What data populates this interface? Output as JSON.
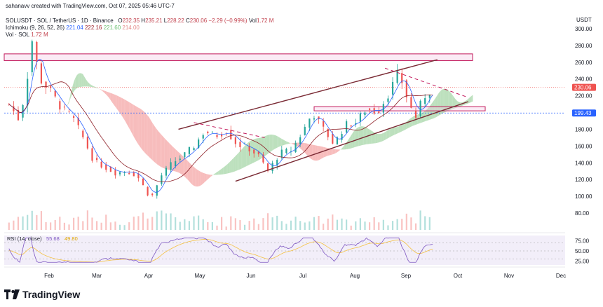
{
  "header": {
    "credit": "sahanavv created with TradingView.com, Oct 07, 2025 05:46 UTC-7",
    "symbol": "SOLUSDT · SOL / TetherUS · 1D · Binance",
    "o_label": "O",
    "o_value": "232.35",
    "h_label": "H",
    "h_value": "235.21",
    "l_label": "L",
    "l_value": "228.22",
    "c_label": "C",
    "c_value": "230.06",
    "change": "−2.29 (−0.99%)",
    "vol_label": "Vol",
    "vol_value": "1.72 M",
    "ichimoku_label": "Ichimoku (9, 26, 52, 26)",
    "ichimoku_v1": "221.04",
    "ichimoku_v2": "222.16",
    "ichimoku_v3": "221.60",
    "ichimoku_v4": "214.00",
    "volsol_label": "Vol · SOL",
    "volsol_value": "1.72 M",
    "rsi_label": "RSI (14, close)",
    "rsi_v1": "55.68",
    "rsi_v2": "49.80"
  },
  "axis": {
    "currency": "USDT",
    "price_ticks": [
      "300.00",
      "280.00",
      "260.00",
      "240.00",
      "220.00",
      "200.00",
      "180.00",
      "160.00",
      "140.00",
      "120.00",
      "100.00",
      "80.00"
    ],
    "rsi_ticks": [
      "75.00",
      "50.00",
      "25.00"
    ],
    "months": [
      "Feb",
      "Mar",
      "Apr",
      "May",
      "Jun",
      "Jul",
      "Aug",
      "Sep",
      "Oct",
      "Nov",
      "Dec"
    ],
    "last_price_tag": "230.06",
    "level_tag": "199.43"
  },
  "footer": {
    "brand": "TradingView"
  },
  "colors": {
    "up": "#26a69a",
    "down": "#ef5350",
    "tenkan": "#2962ff",
    "kijun": "#8e1f27",
    "cloud_green": "#a5d6a7",
    "cloud_red": "#f4a6a6",
    "trend": "#7a2a34",
    "rsi": "#7e57c2",
    "rsi_ma": "#f5c242",
    "band": "#e9e3f5"
  },
  "chart_data": {
    "type": "candlestick",
    "symbol": "SOLUSDT",
    "timeframe": "1D",
    "ylim": [
      70,
      310
    ],
    "x_range": [
      "2025-01-01",
      "2025-12-31"
    ],
    "ohlc_path": [
      [
        "2025-01-05",
        210
      ],
      [
        "2025-01-12",
        190
      ],
      [
        "2025-01-18",
        255
      ],
      [
        "2025-01-19",
        295
      ],
      [
        "2025-01-25",
        240
      ],
      [
        "2025-02-01",
        225
      ],
      [
        "2025-02-08",
        205
      ],
      [
        "2025-02-15",
        195
      ],
      [
        "2025-02-22",
        170
      ],
      [
        "2025-03-01",
        142
      ],
      [
        "2025-03-08",
        135
      ],
      [
        "2025-03-15",
        128
      ],
      [
        "2025-03-22",
        130
      ],
      [
        "2025-03-29",
        125
      ],
      [
        "2025-04-07",
        97
      ],
      [
        "2025-04-14",
        125
      ],
      [
        "2025-04-21",
        140
      ],
      [
        "2025-04-28",
        148
      ],
      [
        "2025-05-05",
        160
      ],
      [
        "2025-05-12",
        178
      ],
      [
        "2025-05-19",
        172
      ],
      [
        "2025-05-26",
        178
      ],
      [
        "2025-06-02",
        162
      ],
      [
        "2025-06-09",
        158
      ],
      [
        "2025-06-16",
        148
      ],
      [
        "2025-06-22",
        130
      ],
      [
        "2025-06-30",
        152
      ],
      [
        "2025-07-07",
        155
      ],
      [
        "2025-07-14",
        175
      ],
      [
        "2025-07-21",
        200
      ],
      [
        "2025-07-28",
        180
      ],
      [
        "2025-08-04",
        162
      ],
      [
        "2025-08-11",
        185
      ],
      [
        "2025-08-18",
        188
      ],
      [
        "2025-08-25",
        205
      ],
      [
        "2025-09-01",
        200
      ],
      [
        "2025-09-08",
        222
      ],
      [
        "2025-09-15",
        248
      ],
      [
        "2025-09-22",
        208
      ],
      [
        "2025-09-26",
        195
      ],
      [
        "2025-10-01",
        218
      ],
      [
        "2025-10-07",
        230
      ]
    ],
    "horizontal_zones": [
      [
        262,
        270
      ],
      [
        202,
        207
      ]
    ],
    "level_lines": [
      199.43
    ],
    "channel_lines": [
      {
        "from": [
          "2025-04-25",
          180
        ],
        "to": [
          "2025-10-10",
          263
        ]
      },
      {
        "from": [
          "2025-06-01",
          118
        ],
        "to": [
          "2025-10-30",
          213
        ]
      }
    ],
    "dashed_lines": [
      {
        "from": [
          "2025-05-05",
          188
        ],
        "to": [
          "2025-06-20",
          170
        ]
      },
      {
        "from": [
          "2025-09-06",
          253
        ],
        "to": [
          "2025-10-30",
          218
        ]
      }
    ],
    "rsi": {
      "ylim": [
        0,
        100
      ],
      "last": 55.68,
      "ma": 49.8
    }
  }
}
